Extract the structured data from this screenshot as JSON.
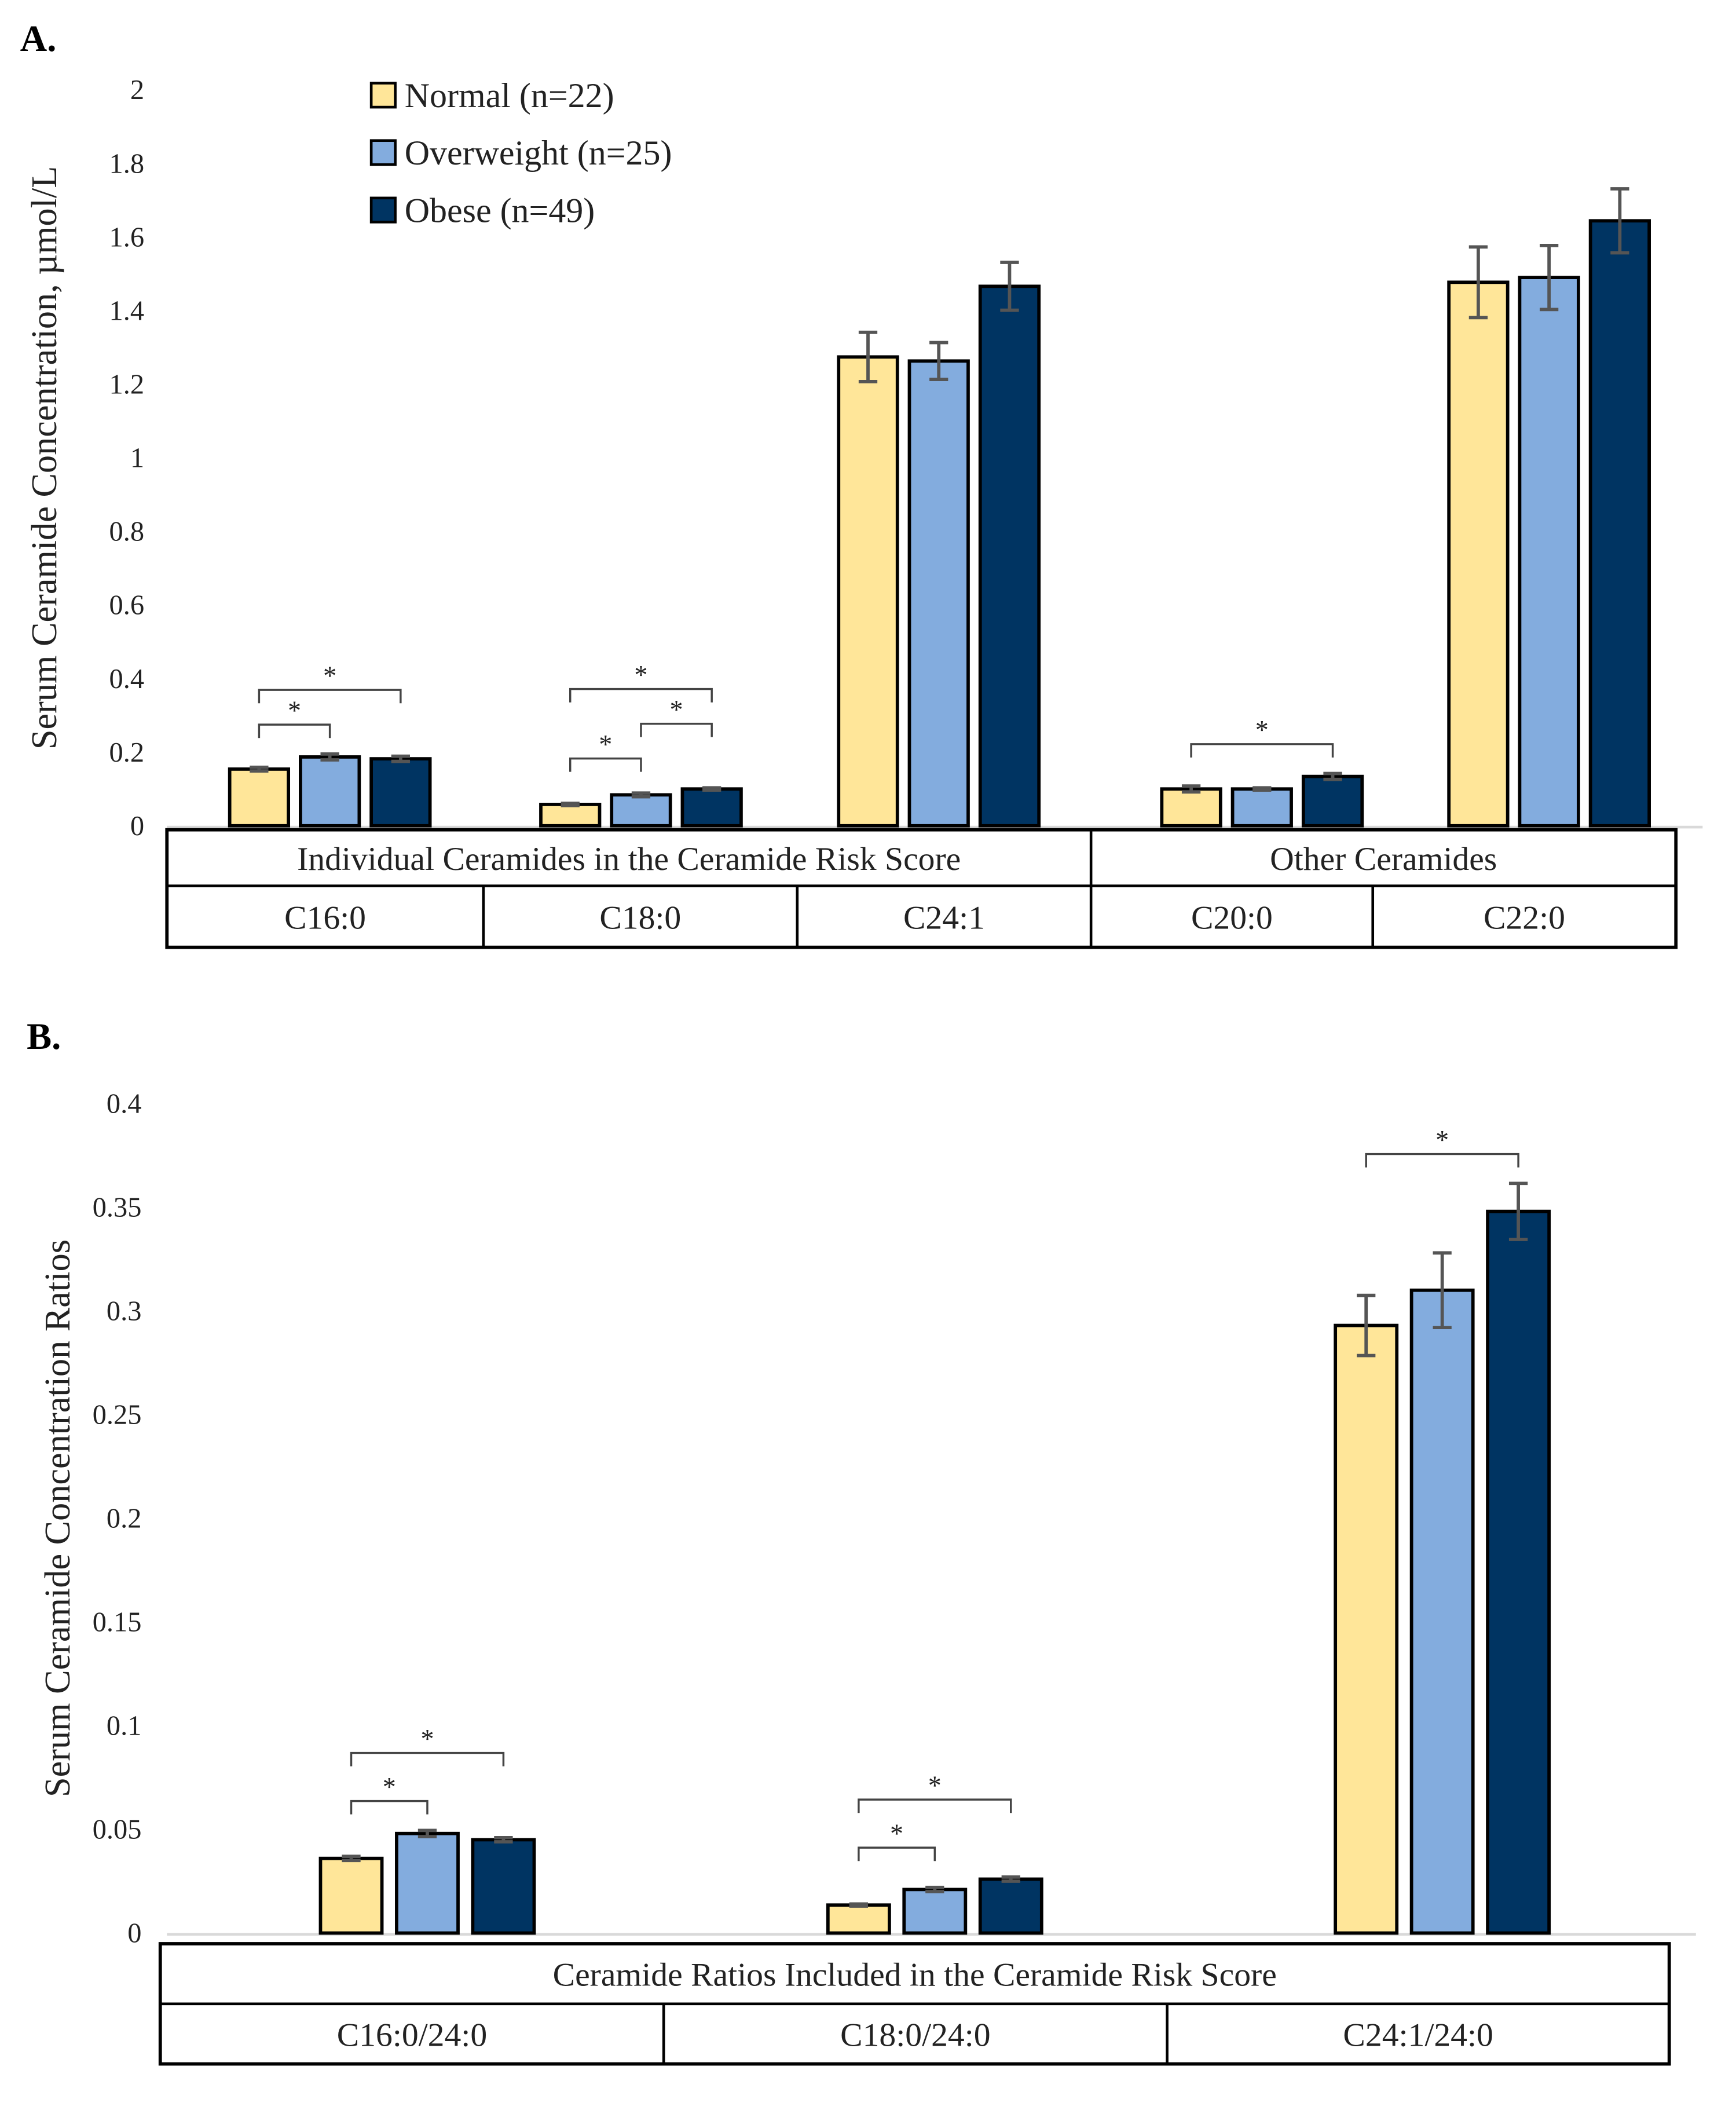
{
  "colors": {
    "Normal": "#FFE699",
    "Overweight": "#83ACDE",
    "Obese": "#003462",
    "error": "#555555"
  },
  "chart_data": [
    {
      "type": "bar",
      "panel_label": "A.",
      "ylabel": "Serum Ceramide Concentration, µmol/L",
      "ylim": [
        0,
        2
      ],
      "yticks": [
        "0",
        "0.2",
        "0.4",
        "0.6",
        "0.8",
        "1",
        "1.2",
        "1.4",
        "1.6",
        "1.8",
        "2"
      ],
      "legend": [
        "Normal (n=22)",
        "Overweight (n=25)",
        "Obese (n=49)"
      ],
      "legend_position": "top-left",
      "group_headers": [
        "Individual Ceramides in the Ceramide Risk Score",
        "Other Ceramides"
      ],
      "categories": [
        "C16:0",
        "C18:0",
        "C24:1",
        "C20:0",
        "C22:0"
      ],
      "series": [
        {
          "name": "Normal",
          "values": [
            0.154,
            0.058,
            1.274,
            0.1,
            1.477
          ],
          "errors": [
            0.005,
            0.003,
            0.067,
            0.008,
            0.096
          ]
        },
        {
          "name": "Overweight",
          "values": [
            0.187,
            0.084,
            1.263,
            0.1,
            1.49
          ],
          "errors": [
            0.008,
            0.005,
            0.05,
            0.003,
            0.087
          ]
        },
        {
          "name": "Obese",
          "values": [
            0.182,
            0.1,
            1.466,
            0.134,
            1.644
          ],
          "errors": [
            0.007,
            0.003,
            0.065,
            0.008,
            0.087
          ]
        }
      ],
      "significance": [
        {
          "category": 0,
          "from": 0,
          "to": 1,
          "level": 0,
          "label": "*"
        },
        {
          "category": 0,
          "from": 0,
          "to": 2,
          "level": 1,
          "label": "*"
        },
        {
          "category": 1,
          "from": 0,
          "to": 1,
          "level": 0,
          "label": "*"
        },
        {
          "category": 1,
          "from": 1,
          "to": 2,
          "level": 1,
          "label": "*"
        },
        {
          "category": 1,
          "from": 0,
          "to": 2,
          "level": 2,
          "label": "*"
        },
        {
          "category": 3,
          "from": 0,
          "to": 2,
          "level": 0,
          "label": "*"
        }
      ]
    },
    {
      "type": "bar",
      "panel_label": "B.",
      "ylabel": "Serum Ceramide Concentration Ratios",
      "ylim": [
        0,
        0.4
      ],
      "yticks": [
        "0",
        "0.05",
        "0.1",
        "0.15",
        "0.2",
        "0.25",
        "0.3",
        "0.35",
        "0.4"
      ],
      "group_headers": [
        "Ceramide Ratios Included in the Ceramide Risk Score"
      ],
      "categories": [
        "C16:0/24:0",
        "C18:0/24:0",
        "C24:1/24:0"
      ],
      "series": [
        {
          "name": "Normal",
          "values": [
            0.036,
            0.0135,
            0.293
          ],
          "errors": [
            0.001,
            0.0005,
            0.0145
          ]
        },
        {
          "name": "Overweight",
          "values": [
            0.048,
            0.021,
            0.31
          ],
          "errors": [
            0.0015,
            0.001,
            0.018
          ]
        },
        {
          "name": "Obese",
          "values": [
            0.045,
            0.026,
            0.348
          ],
          "errors": [
            0.001,
            0.001,
            0.0135
          ]
        }
      ],
      "significance": [
        {
          "category": 0,
          "from": 0,
          "to": 1,
          "level": 0,
          "label": "*"
        },
        {
          "category": 0,
          "from": 0,
          "to": 2,
          "level": 1,
          "label": "*"
        },
        {
          "category": 1,
          "from": 0,
          "to": 1,
          "level": 0,
          "label": "*"
        },
        {
          "category": 1,
          "from": 0,
          "to": 2,
          "level": 1,
          "label": "*"
        },
        {
          "category": 2,
          "from": 0,
          "to": 2,
          "level": 0,
          "label": "*"
        }
      ]
    }
  ]
}
